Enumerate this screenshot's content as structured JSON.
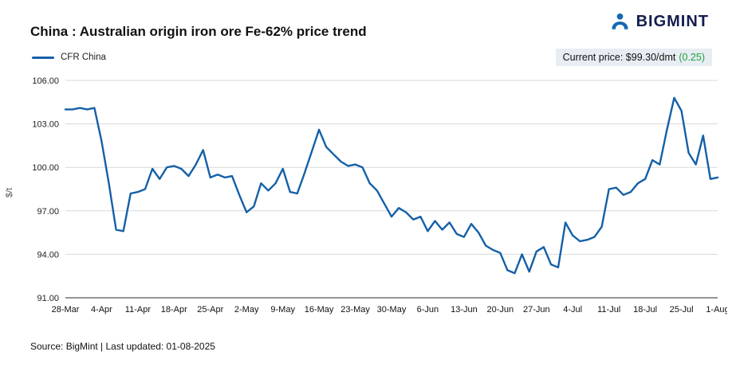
{
  "header": {
    "title": "China : Australian origin iron ore Fe-62% price trend",
    "logo_text": "BIGMINT"
  },
  "legend": {
    "series_label": "CFR China"
  },
  "current_price": {
    "label": "Current price: $99.30/dmt",
    "change": "(0.25)",
    "change_color": "#1fa13f"
  },
  "footer": {
    "source": "Source: BigMint | Last updated: 01-08-2025"
  },
  "chart_data": {
    "type": "line",
    "title": "China : Australian origin iron ore Fe-62% price trend",
    "xlabel": "",
    "ylabel": "$/t",
    "ylim": [
      91,
      106
    ],
    "y_ticks": [
      91,
      94,
      97,
      100,
      103,
      106
    ],
    "grid": true,
    "legend_position": "top-left",
    "line_color": "#1460a8",
    "x_tick_interval": 5,
    "x_tick_labels": [
      "28-Mar",
      "4-Apr",
      "11-Apr",
      "18-Apr",
      "25-Apr",
      "2-May",
      "9-May",
      "16-May",
      "23-May",
      "30-May",
      "6-Jun",
      "13-Jun",
      "20-Jun",
      "27-Jun",
      "4-Jul",
      "11-Jul",
      "18-Jul",
      "25-Jul",
      "1-Aug"
    ],
    "series": [
      {
        "name": "CFR China",
        "values": [
          104.0,
          104.0,
          104.1,
          104.0,
          104.1,
          101.8,
          98.9,
          95.7,
          95.6,
          98.2,
          98.3,
          98.5,
          99.9,
          99.2,
          100.0,
          100.1,
          99.9,
          99.4,
          100.2,
          101.2,
          99.3,
          99.5,
          99.3,
          99.4,
          98.1,
          96.9,
          97.3,
          98.9,
          98.4,
          98.9,
          99.9,
          98.3,
          98.2,
          99.6,
          101.1,
          102.6,
          101.4,
          100.9,
          100.4,
          100.1,
          100.2,
          100.0,
          98.9,
          98.4,
          97.5,
          96.6,
          97.2,
          96.9,
          96.4,
          96.6,
          95.6,
          96.3,
          95.7,
          96.2,
          95.4,
          95.2,
          96.1,
          95.5,
          94.6,
          94.3,
          94.1,
          92.9,
          92.7,
          94.0,
          92.8,
          94.2,
          94.5,
          93.3,
          93.1,
          96.2,
          95.3,
          94.9,
          95.0,
          95.2,
          95.9,
          98.5,
          98.6,
          98.1,
          98.3,
          98.9,
          99.2,
          100.5,
          100.2,
          102.6,
          104.8,
          103.9,
          101.0,
          100.2,
          102.2,
          99.2,
          99.3
        ]
      }
    ]
  }
}
